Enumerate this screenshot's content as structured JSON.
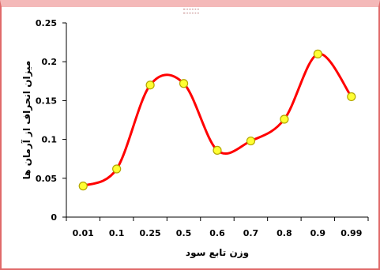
{
  "chart_data": {
    "type": "line",
    "categories": [
      "0.01",
      "0.1",
      "0.25",
      "0.5",
      "0.6",
      "0.7",
      "0.8",
      "0.9",
      "0.99"
    ],
    "series": [
      {
        "values": [
          0.04,
          0.062,
          0.17,
          0.172,
          0.086,
          0.098,
          0.126,
          0.21,
          0.155
        ]
      }
    ],
    "xlabel": "وزن تابع سود",
    "ylabel": "میزان انحراف از آرمان ها",
    "ylim": [
      0,
      0.25
    ],
    "yticks": [
      "0",
      "0.05",
      "0.1",
      "0.15",
      "0.2",
      "0.25"
    ],
    "grid": false,
    "line_color": "#ff0000",
    "marker_color": "#ffff33",
    "marker_edge_color": "#b3a600"
  }
}
